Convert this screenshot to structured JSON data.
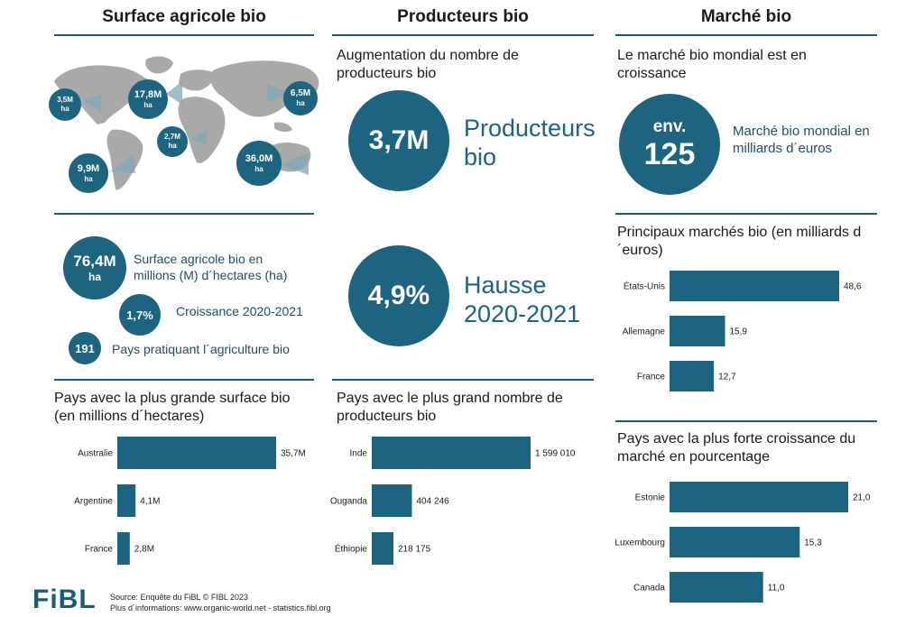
{
  "columns": {
    "surface": "Surface agricole bio",
    "producers": "Producteurs bio",
    "market": "Marché bio"
  },
  "map": {
    "labels": [
      {
        "value": "3,5M",
        "unit": "ha"
      },
      {
        "value": "17,8M",
        "unit": "ha"
      },
      {
        "value": "6,5M",
        "unit": "ha"
      },
      {
        "value": "2,7M",
        "unit": "ha"
      },
      {
        "value": "36,0M",
        "unit": "ha"
      },
      {
        "value": "9,9M",
        "unit": "ha"
      }
    ]
  },
  "surface_stats": {
    "area": {
      "value": "76,4M",
      "unit": "ha",
      "text": "Surface agricole bio en millions (M) d´hectares (ha)"
    },
    "growth": {
      "value": "1,7%",
      "text": "Croissance 2020-2021"
    },
    "countries": {
      "value": "191",
      "text": "Pays pratiquant l´agriculture bio"
    }
  },
  "producers": {
    "heading": "Augmentation du nombre de producteurs bio",
    "count": {
      "value": "3,7M",
      "label_line1": "Producteurs",
      "label_line2": "bio"
    },
    "rise": {
      "value": "4,9%",
      "label_line1": "Hausse",
      "label_line2": "2020-2021"
    }
  },
  "market": {
    "heading": "Le marché bio mondial est en croissance",
    "circle_top": "env.",
    "circle_value": "125",
    "text": "Marché bio mondial en milliards d´euros"
  },
  "chart_data": [
    {
      "type": "bar",
      "title": "Pays avec la plus grande surface bio (en millions d´hectares)",
      "categories": [
        "Australie",
        "Argentine",
        "France"
      ],
      "values": [
        35.7,
        4.1,
        2.8
      ],
      "value_labels": [
        "35,7M",
        "4,1M",
        "2,8M"
      ],
      "orientation": "horizontal",
      "color": "#1d6480"
    },
    {
      "type": "bar",
      "title": "Pays avec le plus grand nombre de producteurs bio",
      "categories": [
        "Inde",
        "Ouganda",
        "Éthiopie"
      ],
      "values": [
        1599010,
        404246,
        218175
      ],
      "value_labels": [
        "1 599 010",
        "404 246",
        "218 175"
      ],
      "orientation": "horizontal",
      "color": "#1d6480"
    },
    {
      "type": "bar",
      "title": "Principaux marchés bio (en milliards d´euros)",
      "categories": [
        "États-Unis",
        "Allemagne",
        "France"
      ],
      "values": [
        48.6,
        15.9,
        12.7
      ],
      "value_labels": [
        "48,6",
        "15,9",
        "12,7"
      ],
      "orientation": "horizontal",
      "color": "#1d6480"
    },
    {
      "type": "bar",
      "title": "Pays avec la plus forte croissance du marché en pourcentage",
      "categories": [
        "Estonie",
        "Luxembourg",
        "Canada"
      ],
      "values": [
        21.0,
        15.3,
        11.0
      ],
      "value_labels": [
        "21,0",
        "15,3",
        "11,0"
      ],
      "orientation": "horizontal",
      "color": "#1d6480"
    }
  ],
  "footer": {
    "logo": "FiBL",
    "source": "Source: Enquête du FiBL © FIBL 2023",
    "more": "Plus d´informations: www.organic-world.net - statistics.fibl.org"
  }
}
